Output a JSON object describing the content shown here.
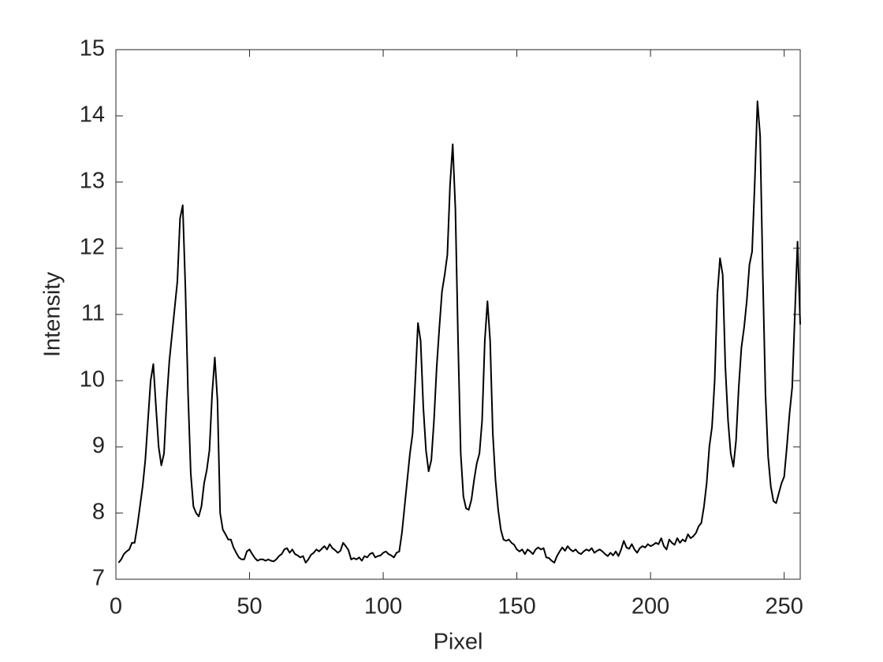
{
  "chart_data": {
    "type": "line",
    "xlabel": "Pixel",
    "ylabel": "Intensity",
    "color": "#000000",
    "xlim": [
      0,
      256
    ],
    "xticks": [
      0,
      50,
      100,
      150,
      200,
      250
    ],
    "ylim": [
      7,
      15
    ],
    "yticks": [
      7,
      8,
      9,
      10,
      11,
      12,
      13,
      14,
      15
    ],
    "x": [
      1,
      2,
      3,
      4,
      5,
      6,
      7,
      8,
      9,
      10,
      11,
      12,
      13,
      14,
      15,
      16,
      17,
      18,
      19,
      20,
      21,
      22,
      23,
      24,
      25,
      26,
      27,
      28,
      29,
      30,
      31,
      32,
      33,
      34,
      35,
      36,
      37,
      38,
      39,
      40,
      41,
      42,
      43,
      44,
      45,
      46,
      47,
      48,
      49,
      50,
      51,
      52,
      53,
      54,
      55,
      56,
      57,
      58,
      59,
      60,
      61,
      62,
      63,
      64,
      65,
      66,
      67,
      68,
      69,
      70,
      71,
      72,
      73,
      74,
      75,
      76,
      77,
      78,
      79,
      80,
      81,
      82,
      83,
      84,
      85,
      86,
      87,
      88,
      89,
      90,
      91,
      92,
      93,
      94,
      95,
      96,
      97,
      98,
      99,
      100,
      101,
      102,
      103,
      104,
      105,
      106,
      107,
      108,
      109,
      110,
      111,
      112,
      113,
      114,
      115,
      116,
      117,
      118,
      119,
      120,
      121,
      122,
      123,
      124,
      125,
      126,
      127,
      128,
      129,
      130,
      131,
      132,
      133,
      134,
      135,
      136,
      137,
      138,
      139,
      140,
      141,
      142,
      143,
      144,
      145,
      146,
      147,
      148,
      149,
      150,
      151,
      152,
      153,
      154,
      155,
      156,
      157,
      158,
      159,
      160,
      161,
      162,
      163,
      164,
      165,
      166,
      167,
      168,
      169,
      170,
      171,
      172,
      173,
      174,
      175,
      176,
      177,
      178,
      179,
      180,
      181,
      182,
      183,
      184,
      185,
      186,
      187,
      188,
      189,
      190,
      191,
      192,
      193,
      194,
      195,
      196,
      197,
      198,
      199,
      200,
      201,
      202,
      203,
      204,
      205,
      206,
      207,
      208,
      209,
      210,
      211,
      212,
      213,
      214,
      215,
      216,
      217,
      218,
      219,
      220,
      221,
      222,
      223,
      224,
      225,
      226,
      227,
      228,
      229,
      230,
      231,
      232,
      233,
      234,
      235,
      236,
      237,
      238,
      239,
      240,
      241,
      242,
      243,
      244,
      245,
      246,
      247,
      248,
      249,
      250,
      251,
      252,
      253,
      254,
      255,
      256
    ],
    "values": [
      7.25,
      7.3,
      7.38,
      7.42,
      7.45,
      7.55,
      7.55,
      7.8,
      8.1,
      8.4,
      8.8,
      9.4,
      10.0,
      10.25,
      9.6,
      9.0,
      8.72,
      8.9,
      9.7,
      10.3,
      10.7,
      11.1,
      11.5,
      12.45,
      12.65,
      11.4,
      9.8,
      8.6,
      8.1,
      8.0,
      7.95,
      8.1,
      8.45,
      8.65,
      8.95,
      9.8,
      10.35,
      9.7,
      8.0,
      7.75,
      7.68,
      7.6,
      7.6,
      7.48,
      7.4,
      7.33,
      7.3,
      7.3,
      7.42,
      7.45,
      7.38,
      7.32,
      7.28,
      7.3,
      7.3,
      7.28,
      7.3,
      7.28,
      7.27,
      7.3,
      7.35,
      7.38,
      7.45,
      7.47,
      7.4,
      7.45,
      7.38,
      7.36,
      7.33,
      7.35,
      7.25,
      7.3,
      7.37,
      7.4,
      7.45,
      7.42,
      7.46,
      7.5,
      7.45,
      7.53,
      7.47,
      7.44,
      7.4,
      7.43,
      7.55,
      7.5,
      7.44,
      7.3,
      7.32,
      7.3,
      7.33,
      7.28,
      7.35,
      7.33,
      7.38,
      7.4,
      7.33,
      7.35,
      7.36,
      7.4,
      7.42,
      7.38,
      7.36,
      7.33,
      7.4,
      7.42,
      7.7,
      8.1,
      8.5,
      8.9,
      9.2,
      10.0,
      10.87,
      10.6,
      9.6,
      8.95,
      8.63,
      8.8,
      9.4,
      10.2,
      10.8,
      11.35,
      11.6,
      11.9,
      12.95,
      13.57,
      12.6,
      10.6,
      8.9,
      8.25,
      8.07,
      8.05,
      8.2,
      8.5,
      8.75,
      8.9,
      9.4,
      10.6,
      11.2,
      10.6,
      9.2,
      8.5,
      8.05,
      7.75,
      7.6,
      7.58,
      7.6,
      7.55,
      7.52,
      7.45,
      7.42,
      7.45,
      7.38,
      7.45,
      7.42,
      7.38,
      7.45,
      7.48,
      7.45,
      7.47,
      7.33,
      7.32,
      7.28,
      7.25,
      7.35,
      7.42,
      7.48,
      7.43,
      7.5,
      7.45,
      7.42,
      7.45,
      7.4,
      7.38,
      7.42,
      7.45,
      7.43,
      7.47,
      7.4,
      7.43,
      7.45,
      7.42,
      7.38,
      7.35,
      7.4,
      7.36,
      7.42,
      7.35,
      7.45,
      7.58,
      7.48,
      7.46,
      7.53,
      7.45,
      7.4,
      7.47,
      7.5,
      7.48,
      7.53,
      7.5,
      7.52,
      7.55,
      7.53,
      7.62,
      7.5,
      7.45,
      7.6,
      7.55,
      7.52,
      7.62,
      7.55,
      7.6,
      7.57,
      7.68,
      7.62,
      7.65,
      7.7,
      7.8,
      7.85,
      8.1,
      8.45,
      9.0,
      9.3,
      10.0,
      11.3,
      11.85,
      11.6,
      10.2,
      9.4,
      8.9,
      8.7,
      9.1,
      9.9,
      10.5,
      10.8,
      11.2,
      11.75,
      11.95,
      13.0,
      14.22,
      13.7,
      11.6,
      9.8,
      8.85,
      8.4,
      8.18,
      8.15,
      8.3,
      8.45,
      8.55,
      9.0,
      9.5,
      9.9,
      11.0,
      12.1,
      10.85
    ]
  }
}
